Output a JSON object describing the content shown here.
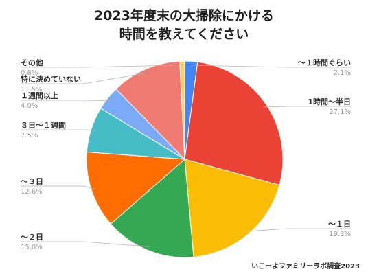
{
  "header": {
    "title_line1": "2023年度末の大掃除にかける",
    "title_line2": "時間を教えてください"
  },
  "footer": {
    "source": "いこーよファミリーラボ調査2023"
  },
  "chart_data": {
    "type": "pie",
    "title": "2023年度末の大掃除にかける時間を教えてください",
    "start_angle_deg": 0,
    "direction": "clockwise",
    "slices": [
      {
        "label": "～１時間ぐらい",
        "value": 2.1,
        "pct_label": "2.1%",
        "color": "#4285f4"
      },
      {
        "label": "1時間～半日",
        "value": 27.1,
        "pct_label": "27.1%",
        "color": "#ea4335"
      },
      {
        "label": "～１日",
        "value": 19.3,
        "pct_label": "19.3%",
        "color": "#fbbc04"
      },
      {
        "label": "～２日",
        "value": 15.0,
        "pct_label": "15.0%",
        "color": "#34a853"
      },
      {
        "label": "～３日",
        "value": 12.6,
        "pct_label": "12.6%",
        "color": "#ff6d01"
      },
      {
        "label": "３日～１週間",
        "value": 7.5,
        "pct_label": "7.5%",
        "color": "#46bdc6"
      },
      {
        "label": "１週間以上",
        "value": 4.0,
        "pct_label": "4.0%",
        "color": "#7baaf7"
      },
      {
        "label": "特に決めていない",
        "value": 11.5,
        "pct_label": "11.5%",
        "color": "#f07b72"
      },
      {
        "label": "その他",
        "value": 0.8,
        "pct_label": "0.8%",
        "color": "#fcd04f"
      }
    ]
  }
}
